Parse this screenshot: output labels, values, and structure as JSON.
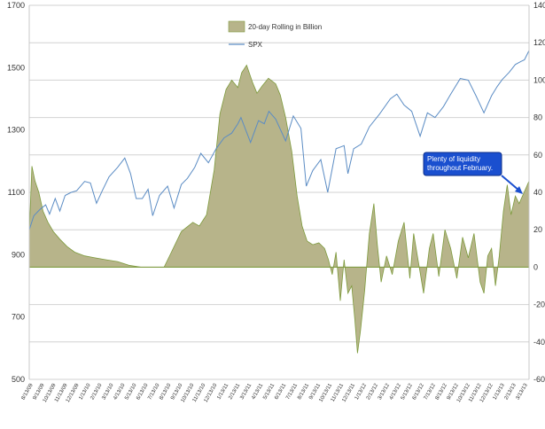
{
  "chart_data": {
    "type": "area",
    "x_range": [
      "8/13/09",
      "3/13/13"
    ],
    "x_tick_labels": [
      "8/13/09",
      "9/13/09",
      "10/13/09",
      "11/13/09",
      "12/13/09",
      "1/13/10",
      "2/13/10",
      "3/13/10",
      "4/13/10",
      "5/13/10",
      "6/13/10",
      "7/13/10",
      "8/13/10",
      "9/13/10",
      "10/13/10",
      "11/13/10",
      "12/13/10",
      "1/13/11",
      "2/13/11",
      "3/13/11",
      "4/13/11",
      "5/13/11",
      "6/13/11",
      "7/13/11",
      "8/13/11",
      "9/13/11",
      "10/13/11",
      "11/13/11",
      "12/13/11",
      "1/13/12",
      "2/13/12",
      "3/13/12",
      "4/13/12",
      "5/13/12",
      "6/13/12",
      "7/13/12",
      "8/13/12",
      "9/13/12",
      "10/13/12",
      "11/13/12",
      "12/13/12",
      "1/13/13",
      "2/13/13",
      "3/13/13"
    ],
    "left_axis": {
      "ticks": [
        500,
        700,
        900,
        1100,
        1300,
        1500,
        1700
      ],
      "range": [
        500,
        1700
      ]
    },
    "right_axis": {
      "ticks": [
        -60,
        -40,
        -20,
        0,
        20,
        40,
        60,
        80,
        100,
        120,
        140
      ],
      "range": [
        -60,
        140
      ]
    },
    "grid": "horizontal",
    "legend": "top-center",
    "series": [
      {
        "name": "20-day Rolling in Billion",
        "kind": "area",
        "axis": "right",
        "color": "#b7b48a",
        "stroke": "#7d9a3c",
        "points": [
          [
            "2009-08-13",
            18
          ],
          [
            "2009-08-20",
            54
          ],
          [
            "2009-08-28",
            46
          ],
          [
            "2009-09-07",
            40
          ],
          [
            "2009-09-18",
            30
          ],
          [
            "2009-10-01",
            24
          ],
          [
            "2009-10-15",
            19
          ],
          [
            "2009-11-01",
            15
          ],
          [
            "2009-11-20",
            11
          ],
          [
            "2009-12-10",
            8
          ],
          [
            "2010-01-05",
            6
          ],
          [
            "2010-02-01",
            5
          ],
          [
            "2010-03-01",
            4
          ],
          [
            "2010-04-01",
            3
          ],
          [
            "2010-05-01",
            1
          ],
          [
            "2010-06-01",
            0
          ],
          [
            "2010-07-01",
            0
          ],
          [
            "2010-08-01",
            0
          ],
          [
            "2010-08-20",
            8
          ],
          [
            "2010-09-15",
            19
          ],
          [
            "2010-10-15",
            24
          ],
          [
            "2010-11-01",
            22
          ],
          [
            "2010-11-20",
            28
          ],
          [
            "2010-12-10",
            52
          ],
          [
            "2010-12-25",
            82
          ],
          [
            "2011-01-10",
            95
          ],
          [
            "2011-01-25",
            100
          ],
          [
            "2011-02-10",
            96
          ],
          [
            "2011-02-20",
            104
          ],
          [
            "2011-03-05",
            108
          ],
          [
            "2011-03-20",
            99
          ],
          [
            "2011-04-01",
            93
          ],
          [
            "2011-04-15",
            97
          ],
          [
            "2011-05-01",
            101
          ],
          [
            "2011-05-20",
            98
          ],
          [
            "2011-06-01",
            92
          ],
          [
            "2011-06-15",
            80
          ],
          [
            "2011-07-01",
            62
          ],
          [
            "2011-07-15",
            38
          ],
          [
            "2011-07-28",
            22
          ],
          [
            "2011-08-10",
            14
          ],
          [
            "2011-08-25",
            12
          ],
          [
            "2011-09-10",
            13
          ],
          [
            "2011-09-25",
            10
          ],
          [
            "2011-10-05",
            4
          ],
          [
            "2011-10-15",
            -4
          ],
          [
            "2011-10-25",
            8
          ],
          [
            "2011-11-05",
            -18
          ],
          [
            "2011-11-15",
            4
          ],
          [
            "2011-11-25",
            -14
          ],
          [
            "2011-12-05",
            -10
          ],
          [
            "2011-12-13",
            -28
          ],
          [
            "2011-12-20",
            -46
          ],
          [
            "2011-12-28",
            -34
          ],
          [
            "2012-01-08",
            -12
          ],
          [
            "2012-01-20",
            18
          ],
          [
            "2012-02-01",
            34
          ],
          [
            "2012-02-10",
            12
          ],
          [
            "2012-02-20",
            -8
          ],
          [
            "2012-03-05",
            6
          ],
          [
            "2012-03-20",
            -4
          ],
          [
            "2012-04-05",
            14
          ],
          [
            "2012-04-20",
            24
          ],
          [
            "2012-05-05",
            -6
          ],
          [
            "2012-05-15",
            18
          ],
          [
            "2012-05-28",
            2
          ],
          [
            "2012-06-10",
            -14
          ],
          [
            "2012-06-25",
            10
          ],
          [
            "2012-07-05",
            18
          ],
          [
            "2012-07-20",
            -5
          ],
          [
            "2012-08-05",
            20
          ],
          [
            "2012-08-20",
            10
          ],
          [
            "2012-09-05",
            -6
          ],
          [
            "2012-09-20",
            16
          ],
          [
            "2012-10-05",
            5
          ],
          [
            "2012-10-20",
            18
          ],
          [
            "2012-11-05",
            -8
          ],
          [
            "2012-11-15",
            -14
          ],
          [
            "2012-11-25",
            6
          ],
          [
            "2012-12-05",
            10
          ],
          [
            "2012-12-15",
            -10
          ],
          [
            "2012-12-25",
            6
          ],
          [
            "2013-01-05",
            30
          ],
          [
            "2013-01-15",
            44
          ],
          [
            "2013-01-25",
            28
          ],
          [
            "2013-02-05",
            38
          ],
          [
            "2013-02-15",
            34
          ],
          [
            "2013-02-28",
            40
          ],
          [
            "2013-03-13",
            46
          ]
        ]
      },
      {
        "name": "SPX",
        "kind": "line",
        "axis": "left",
        "color": "#5b8cc4",
        "points": [
          [
            "2009-08-13",
            980
          ],
          [
            "2009-08-25",
            1025
          ],
          [
            "2009-09-10",
            1045
          ],
          [
            "2009-09-25",
            1060
          ],
          [
            "2009-10-05",
            1030
          ],
          [
            "2009-10-20",
            1080
          ],
          [
            "2009-11-01",
            1040
          ],
          [
            "2009-11-15",
            1090
          ],
          [
            "2009-12-01",
            1100
          ],
          [
            "2009-12-15",
            1105
          ],
          [
            "2010-01-05",
            1135
          ],
          [
            "2010-01-20",
            1130
          ],
          [
            "2010-02-05",
            1065
          ],
          [
            "2010-02-20",
            1105
          ],
          [
            "2010-03-10",
            1150
          ],
          [
            "2010-04-01",
            1180
          ],
          [
            "2010-04-20",
            1210
          ],
          [
            "2010-05-05",
            1160
          ],
          [
            "2010-05-20",
            1080
          ],
          [
            "2010-06-05",
            1080
          ],
          [
            "2010-06-20",
            1110
          ],
          [
            "2010-07-02",
            1025
          ],
          [
            "2010-07-20",
            1090
          ],
          [
            "2010-08-10",
            1120
          ],
          [
            "2010-08-27",
            1050
          ],
          [
            "2010-09-15",
            1125
          ],
          [
            "2010-10-01",
            1145
          ],
          [
            "2010-10-20",
            1180
          ],
          [
            "2010-11-05",
            1225
          ],
          [
            "2010-11-25",
            1195
          ],
          [
            "2010-12-15",
            1240
          ],
          [
            "2011-01-05",
            1275
          ],
          [
            "2011-01-25",
            1290
          ],
          [
            "2011-02-10",
            1320
          ],
          [
            "2011-02-18",
            1340
          ],
          [
            "2011-03-15",
            1260
          ],
          [
            "2011-04-05",
            1330
          ],
          [
            "2011-04-20",
            1320
          ],
          [
            "2011-05-02",
            1360
          ],
          [
            "2011-05-20",
            1335
          ],
          [
            "2011-06-15",
            1265
          ],
          [
            "2011-07-05",
            1345
          ],
          [
            "2011-07-25",
            1305
          ],
          [
            "2011-08-08",
            1120
          ],
          [
            "2011-08-25",
            1170
          ],
          [
            "2011-09-15",
            1205
          ],
          [
            "2011-10-03",
            1100
          ],
          [
            "2011-10-25",
            1240
          ],
          [
            "2011-11-15",
            1250
          ],
          [
            "2011-11-25",
            1160
          ],
          [
            "2011-12-10",
            1240
          ],
          [
            "2011-12-30",
            1255
          ],
          [
            "2012-01-20",
            1310
          ],
          [
            "2012-02-15",
            1350
          ],
          [
            "2012-03-15",
            1400
          ],
          [
            "2012-04-01",
            1415
          ],
          [
            "2012-04-20",
            1380
          ],
          [
            "2012-05-10",
            1360
          ],
          [
            "2012-06-01",
            1280
          ],
          [
            "2012-06-20",
            1355
          ],
          [
            "2012-07-10",
            1340
          ],
          [
            "2012-08-01",
            1375
          ],
          [
            "2012-08-20",
            1415
          ],
          [
            "2012-09-14",
            1465
          ],
          [
            "2012-10-05",
            1460
          ],
          [
            "2012-10-25",
            1410
          ],
          [
            "2012-11-15",
            1355
          ],
          [
            "2012-12-05",
            1410
          ],
          [
            "2012-12-20",
            1440
          ],
          [
            "2013-01-02",
            1462
          ],
          [
            "2013-01-20",
            1485
          ],
          [
            "2013-02-05",
            1510
          ],
          [
            "2013-02-20",
            1520
          ],
          [
            "2013-03-01",
            1525
          ],
          [
            "2013-03-13",
            1555
          ]
        ]
      }
    ],
    "annotation": {
      "text": [
        "Plenty of liquidity",
        "throughout February."
      ]
    }
  }
}
